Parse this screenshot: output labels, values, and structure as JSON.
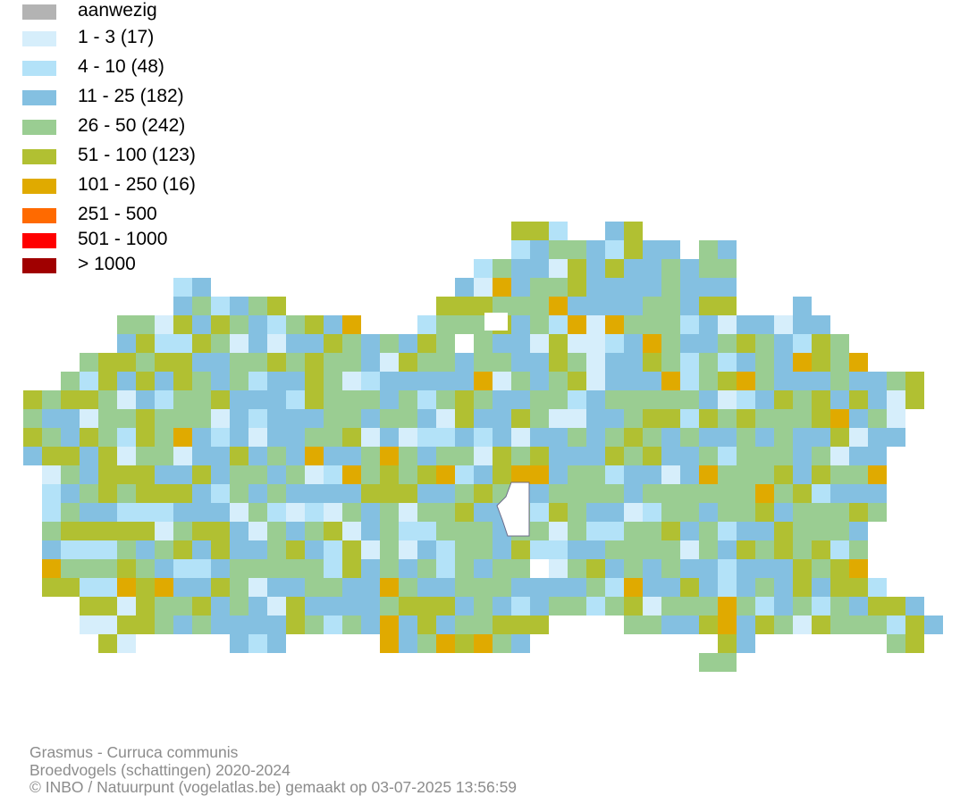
{
  "legend": {
    "items": [
      {
        "label": "aanwezig",
        "color": "#b3b3b3"
      },
      {
        "label": "1 - 3 (17)",
        "color": "#d6eefb"
      },
      {
        "label": "4 - 10 (48)",
        "color": "#b3e2f8"
      },
      {
        "label": "11 - 25 (182)",
        "color": "#84c0e1"
      },
      {
        "label": "26 - 50 (242)",
        "color": "#9acd92"
      },
      {
        "label": "51 - 100 (123)",
        "color": "#b1c032"
      },
      {
        "label": "101 - 250 (16)",
        "color": "#e0aa00"
      },
      {
        "label": "251 - 500",
        "color": "#ff6a00"
      },
      {
        "label": "501 - 1000",
        "color": "#ff0000"
      },
      {
        "label": "> 1000",
        "color": "#a00000"
      }
    ]
  },
  "footer": {
    "species": "Grasmus - Curruca communis",
    "dataset": "Broedvogels (schattingen) 2020-2024",
    "credits": "© INBO / Natuurpunt (vogelatlas.be) gemaakt op 03-07-2025 13:56:59"
  }
}
